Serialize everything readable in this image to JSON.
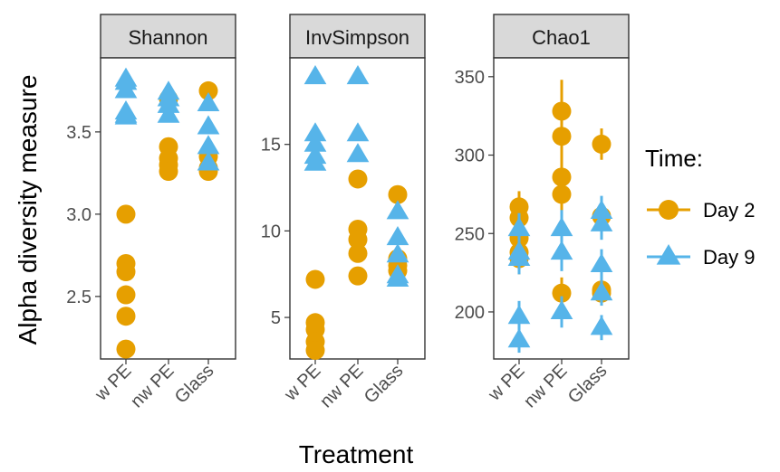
{
  "chart_data": {
    "type": "scatter",
    "ylabel": "Alpha diversity measure",
    "xlabel": "Treatment",
    "categories": [
      "w PE",
      "nw PE",
      "Glass"
    ],
    "legend": {
      "title": "Time:",
      "placement": "right",
      "entries": [
        {
          "label": "Day 2",
          "shape": "circle",
          "color": "#E69F00"
        },
        {
          "label": "Day 9",
          "shape": "triangle",
          "color": "#56B4E9"
        }
      ]
    },
    "grid": false,
    "facets": [
      {
        "name": "Shannon",
        "ylim": [
          2.12,
          3.95
        ],
        "yticks": [
          2.5,
          3.0,
          3.5
        ],
        "tick_labels": [
          "2.5",
          "3.0",
          "3.5"
        ],
        "series": [
          {
            "name": "Day 2",
            "points": [
              {
                "x": "w PE",
                "y": [
                  3.0,
                  2.7,
                  2.65,
                  2.51,
                  2.38,
                  2.18
                ]
              },
              {
                "x": "nw PE",
                "y": [
                  3.7,
                  3.41,
                  3.34,
                  3.3,
                  3.26
                ]
              },
              {
                "x": "Glass",
                "y": [
                  3.75,
                  3.35,
                  3.28,
                  3.26
                ]
              }
            ]
          },
          {
            "name": "Day 9",
            "points": [
              {
                "x": "w PE",
                "y": [
                  3.82,
                  3.8,
                  3.75,
                  3.62,
                  3.6,
                  3.59
                ]
              },
              {
                "x": "nw PE",
                "y": [
                  3.74,
                  3.7,
                  3.66,
                  3.6
                ]
              },
              {
                "x": "Glass",
                "y": [
                  3.67,
                  3.53,
                  3.41,
                  3.31
                ]
              }
            ]
          }
        ]
      },
      {
        "name": "InvSimpson",
        "ylim": [
          2.6,
          20.0
        ],
        "yticks": [
          5,
          10,
          15
        ],
        "tick_labels": [
          "5",
          "10",
          "15"
        ],
        "series": [
          {
            "name": "Day 2",
            "points": [
              {
                "x": "w PE",
                "y": [
                  7.2,
                  4.7,
                  4.3,
                  3.6,
                  3.1
                ]
              },
              {
                "x": "nw PE",
                "y": [
                  13.0,
                  10.1,
                  9.5,
                  8.7,
                  7.4
                ]
              },
              {
                "x": "Glass",
                "y": [
                  12.1,
                  8.4,
                  8.0,
                  7.7
                ]
              }
            ]
          },
          {
            "name": "Day 9",
            "points": [
              {
                "x": "w PE",
                "y": [
                  18.9,
                  15.6,
                  15.0,
                  14.3,
                  13.9
                ]
              },
              {
                "x": "nw PE",
                "y": [
                  18.9,
                  15.6,
                  14.4
                ]
              },
              {
                "x": "Glass",
                "y": [
                  11.1,
                  9.6,
                  8.6,
                  7.4,
                  7.2
                ]
              }
            ]
          }
        ]
      },
      {
        "name": "Chao1",
        "ylim": [
          170,
          362
        ],
        "yticks": [
          200,
          250,
          300,
          350
        ],
        "tick_labels": [
          "200",
          "250",
          "300",
          "350"
        ],
        "series": [
          {
            "name": "Day 2",
            "points": [
              {
                "x": "w PE",
                "y": [
                  267,
                  260,
                  247,
                  238,
                  234
                ],
                "err": [
                  10,
                  10,
                  10,
                  10,
                  10
                ]
              },
              {
                "x": "nw PE",
                "y": [
                  328,
                  312,
                  286,
                  275,
                  212
                ],
                "err": [
                  20,
                  15,
                  12,
                  12,
                  10
                ]
              },
              {
                "x": "Glass",
                "y": [
                  307,
                  261,
                  214,
                  212
                ],
                "err": [
                  10,
                  10,
                  8,
                  8
                ]
              }
            ]
          },
          {
            "name": "Day 9",
            "points": [
              {
                "x": "w PE",
                "y": [
                  253,
                  238,
                  234,
                  197,
                  182
                ],
                "err": [
                  10,
                  10,
                  10,
                  10,
                  8
                ]
              },
              {
                "x": "nw PE",
                "y": [
                  253,
                  238,
                  200
                ],
                "err": [
                  12,
                  12,
                  10
                ]
              },
              {
                "x": "Glass",
                "y": [
                  264,
                  256,
                  230,
                  212,
                  190
                ],
                "err": [
                  10,
                  10,
                  10,
                  8,
                  8
                ]
              }
            ]
          }
        ]
      }
    ]
  }
}
